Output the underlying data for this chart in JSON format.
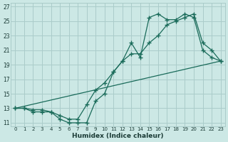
{
  "xlabel": "Humidex (Indice chaleur)",
  "bg_color": "#cce8e5",
  "grid_color": "#aaccca",
  "line_color": "#1a6b5a",
  "xlim": [
    -0.5,
    23.5
  ],
  "ylim": [
    10.5,
    27.5
  ],
  "xticks": [
    0,
    1,
    2,
    3,
    4,
    5,
    6,
    7,
    8,
    9,
    10,
    11,
    12,
    13,
    14,
    15,
    16,
    17,
    18,
    19,
    20,
    21,
    22,
    23
  ],
  "yticks": [
    11,
    13,
    15,
    17,
    19,
    21,
    23,
    25,
    27
  ],
  "series1_x": [
    0,
    1,
    2,
    3,
    4,
    5,
    6,
    7,
    8,
    9,
    10,
    11,
    12,
    13,
    14,
    15,
    16,
    17,
    18,
    19,
    20,
    21,
    22,
    23
  ],
  "series1_y": [
    13,
    13,
    12.5,
    12.5,
    12.5,
    11.5,
    11,
    11,
    11,
    14,
    15,
    18,
    19.5,
    22,
    20,
    25.5,
    26,
    25.2,
    25.2,
    26,
    25.5,
    21,
    20,
    19.5
  ],
  "series2_x": [
    0,
    23
  ],
  "series2_y": [
    13.0,
    19.5
  ],
  "series3_x": [
    0,
    1,
    2,
    3,
    4,
    5,
    6,
    7,
    8,
    9,
    10,
    11,
    12,
    13,
    14,
    15,
    16,
    17,
    18,
    19,
    20,
    21,
    22,
    23
  ],
  "series3_y": [
    13,
    13,
    12.8,
    12.8,
    12.5,
    12.0,
    11.5,
    11.5,
    13.5,
    15.5,
    16.5,
    18,
    19.5,
    20.5,
    20.5,
    22,
    23,
    24.5,
    25,
    25.5,
    26,
    22,
    21,
    19.5
  ]
}
